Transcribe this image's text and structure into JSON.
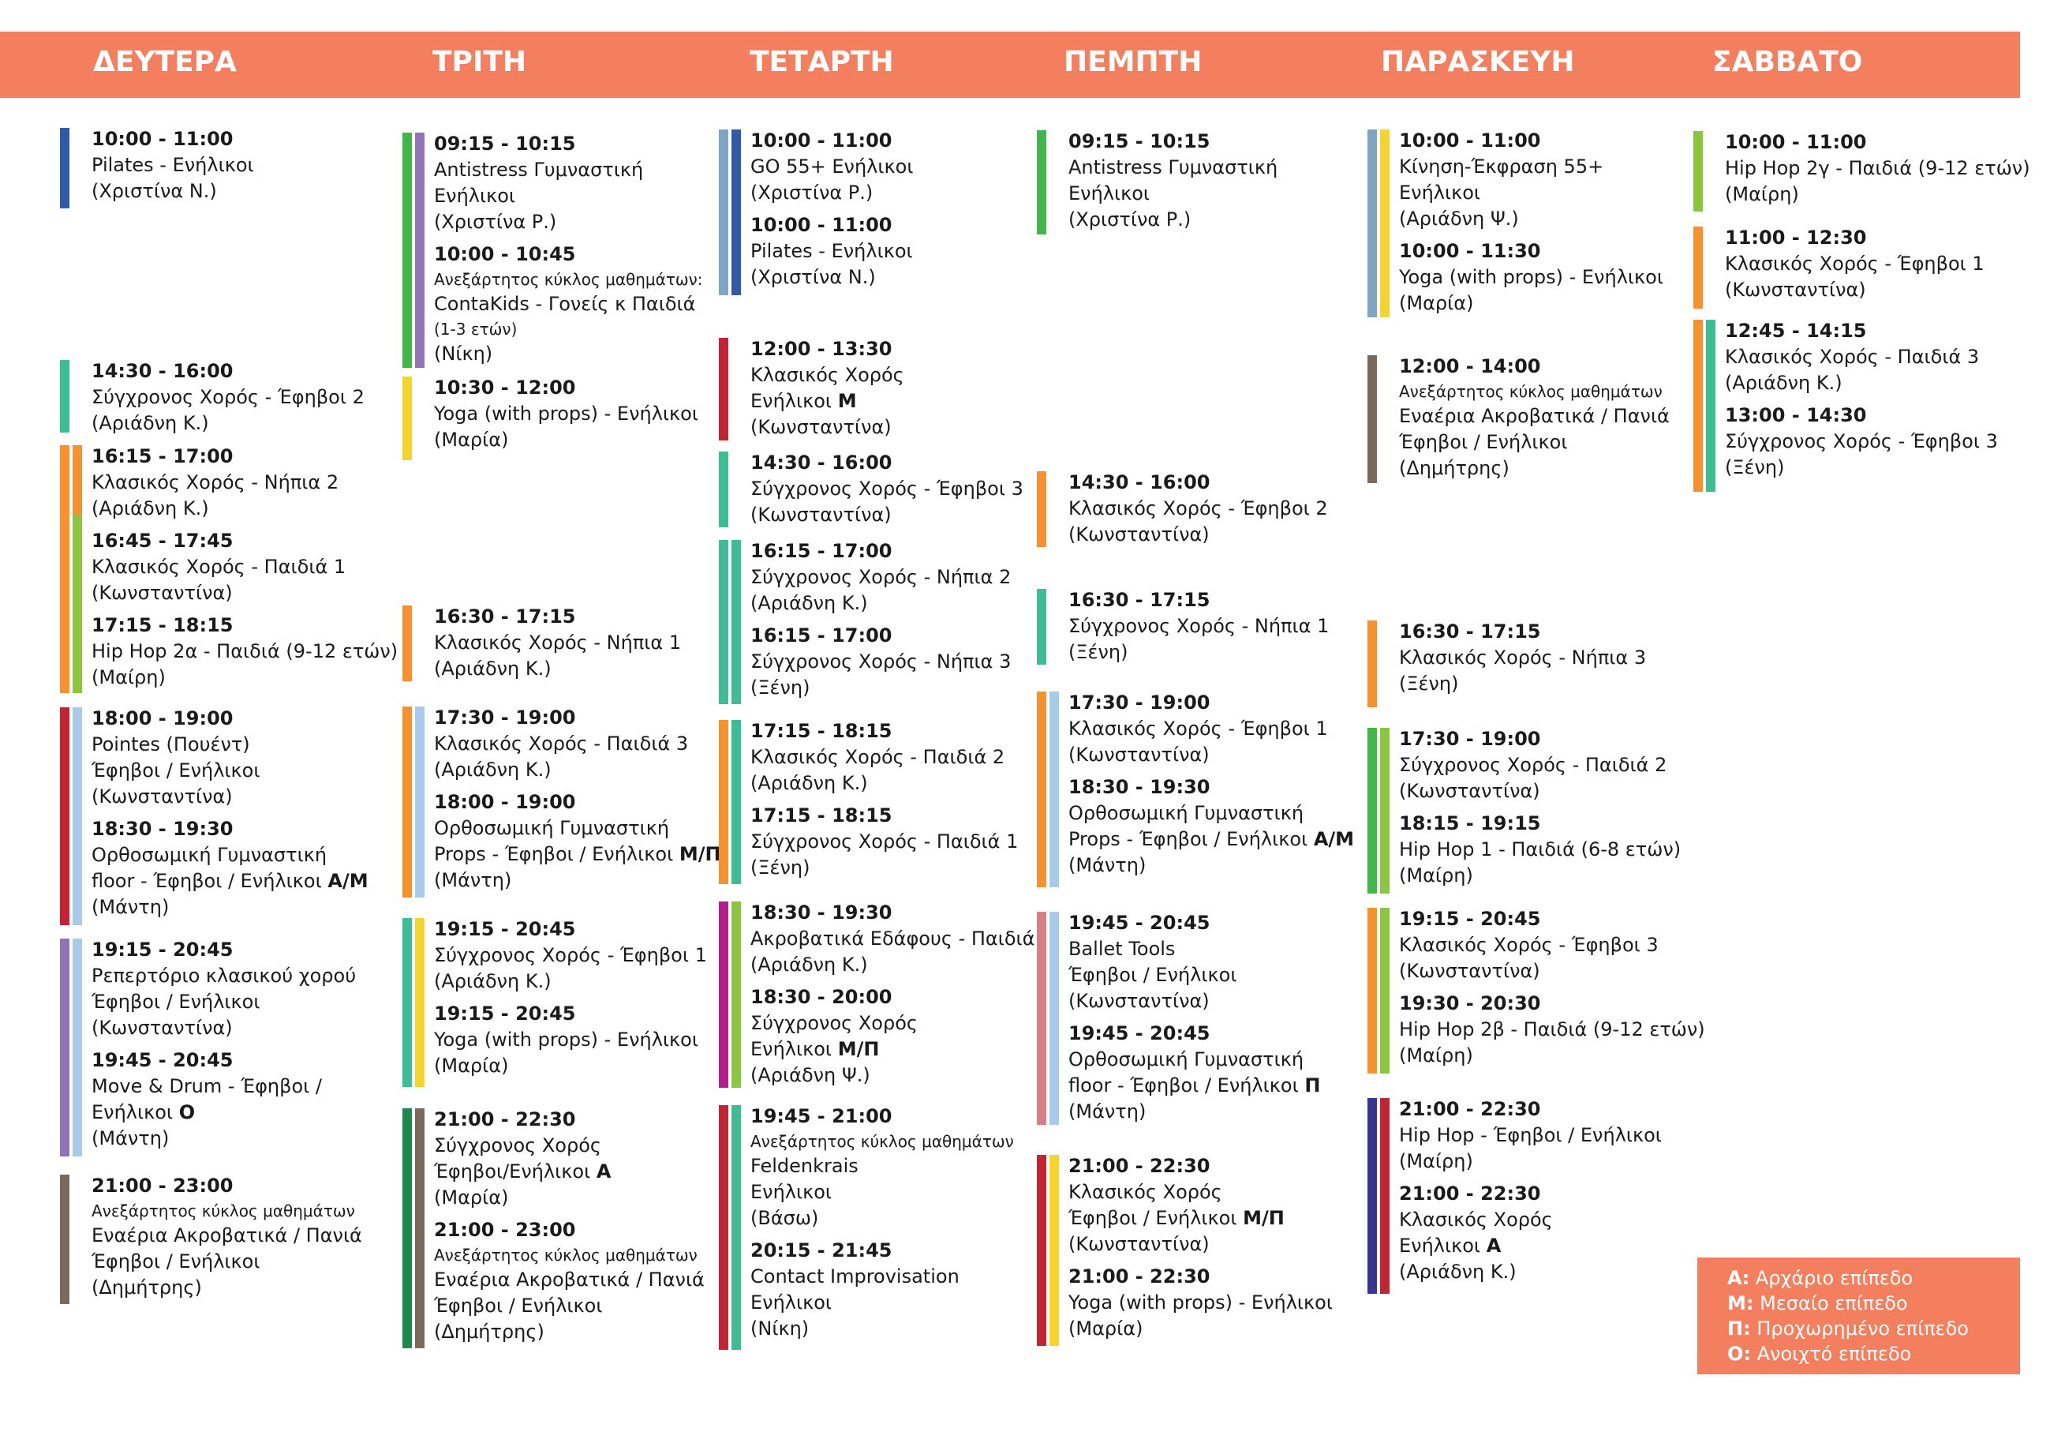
{
  "colors": {
    "header": "#f47f5e",
    "blue": "#2f5aa8",
    "light_blue": "#a7cbe8",
    "steel_blue": "#7ea6c4",
    "teal": "#3dbd93",
    "orange": "#f7902f",
    "green": "#8cc63f",
    "dark_green": "#1b8a4a",
    "red": "#c22432",
    "purple": "#8f74b6",
    "magenta": "#b31e8c",
    "brown": "#7a6a5c",
    "yellow": "#f5d42f",
    "pink": "#d97f86",
    "indigo": "#3a3593",
    "mid_green": "#41b649"
  },
  "days": [
    {
      "name": "ΔΕΥΤΕΡΑ",
      "blocks": [
        {
          "entries": [
            {
              "time": "10:00 - 11:00",
              "lines": [
                "Pilates - Ενήλικοι",
                "(Χριστίνα Ν.)"
              ]
            }
          ]
        },
        {
          "entries": [
            {
              "time": "14:30 - 16:00",
              "lines": [
                "Σύγχρονος Χορός - Έφηβοι 2",
                "(Αριάδνη Κ.)"
              ]
            }
          ]
        },
        {
          "entries": [
            {
              "time": "16:15 - 17:00",
              "lines": [
                "Κλασικός Χορός - Νήπια 2",
                "(Αριάδνη Κ.)"
              ]
            },
            {
              "time": "16:45 - 17:45",
              "lines": [
                "Κλασικός Χορός - Παιδιά 1",
                "(Κωνσταντίνα)"
              ]
            },
            {
              "time": "17:15 - 18:15",
              "lines": [
                "Hip Hop 2α - Παιδιά (9-12 ετών)",
                "(Μαίρη)"
              ]
            }
          ]
        },
        {
          "entries": [
            {
              "time": "18:00 - 19:00",
              "lines": [
                "Pointes (Πουέντ)",
                "Έφηβοι / Ενήλικοι",
                "(Κωνσταντίνα)"
              ]
            },
            {
              "time": "18:30 - 19:30",
              "lines": [
                "Ορθοσωμική Γυμναστική"
              ],
              "level_line": {
                "text": "floor - Έφηβοι / Ενήλικοι ",
                "level": "Α/Μ"
              },
              "after": [
                "(Μάντη)"
              ]
            }
          ]
        },
        {
          "entries": [
            {
              "time": "19:15 - 20:45",
              "lines": [
                "Ρεπερτόριο κλασικού χορού",
                "Έφηβοι / Ενήλικοι",
                "(Κωνσταντίνα)"
              ]
            },
            {
              "time": "19:45 - 20:45",
              "lines": [
                "Move & Drum - Έφηβοι /"
              ],
              "level_line": {
                "text": "Ενήλικοι ",
                "level": "Ο"
              },
              "after": [
                "(Μάντη)"
              ]
            }
          ]
        },
        {
          "entries": [
            {
              "time": "21:00 - 23:00",
              "small": "Ανεξάρτητος κύκλος μαθημάτων",
              "lines": [
                "Εναέρια Ακροβατικά / Πανιά",
                "Έφηβοι / Ενήλικοι",
                "(Δημήτρης)"
              ]
            }
          ]
        }
      ]
    },
    {
      "name": "ΤΡΙΤΗ",
      "blocks": [
        {
          "entries": [
            {
              "time": "09:15 - 10:15",
              "lines": [
                "Antistress Γυμναστική",
                "Ενήλικοι",
                "(Χριστίνα Ρ.)"
              ]
            },
            {
              "time": "10:00 - 10:45",
              "small": "Ανεξάρτητος κύκλος μαθημάτων:",
              "lines": [
                "ContaKids - Γονείς κ Παιδιά"
              ],
              "small2": "(1-3 ετών)",
              "after": [
                "(Νίκη)"
              ]
            }
          ]
        },
        {
          "entries": [
            {
              "time": "10:30 - 12:00",
              "lines": [
                "Yoga (with props) - Ενήλικοι",
                "(Μαρία)"
              ]
            }
          ]
        },
        {
          "entries": [
            {
              "time": "16:30 - 17:15",
              "lines": [
                "Κλασικός Χορός - Νήπια 1",
                "(Αριάδνη Κ.)"
              ]
            }
          ]
        },
        {
          "entries": [
            {
              "time": "17:30 - 19:00",
              "lines": [
                "Κλασικός Χορός - Παιδιά 3",
                "(Αριάδνη Κ.)"
              ]
            },
            {
              "time": "18:00 - 19:00",
              "lines": [
                "Ορθοσωμική Γυμναστική"
              ],
              "level_line": {
                "text": "Props - Έφηβοι / Ενήλικοι ",
                "level": "Μ/Π"
              },
              "after": [
                "(Μάντη)"
              ]
            }
          ]
        },
        {
          "entries": [
            {
              "time": "19:15 - 20:45",
              "lines": [
                "Σύγχρονος Χορός - Έφηβοι 1",
                "(Αριάδνη Κ.)"
              ]
            },
            {
              "time": "19:15 - 20:45",
              "lines": [
                "Yoga (with props) - Ενήλικοι",
                "(Μαρία)"
              ]
            }
          ]
        },
        {
          "entries": [
            {
              "time": "21:00 - 22:30",
              "lines": [
                "Σύγχρονος Χορός"
              ],
              "level_line": {
                "text": "Έφηβοι/Ενήλικοι ",
                "level": "Α"
              },
              "after": [
                "(Μαρία)"
              ]
            },
            {
              "time": "21:00 - 23:00",
              "small": "Ανεξάρτητος κύκλος μαθημάτων",
              "lines": [
                "Εναέρια Ακροβατικά / Πανιά",
                "Έφηβοι / Ενήλικοι",
                "(Δημήτρης)"
              ]
            }
          ]
        }
      ]
    },
    {
      "name": "ΤΕΤΑΡΤΗ",
      "blocks": [
        {
          "entries": [
            {
              "time": "10:00 - 11:00",
              "lines": [
                "GO 55+  Ενήλικοι",
                "(Χριστίνα Ρ.)"
              ]
            },
            {
              "time": "10:00 - 11:00",
              "lines": [
                "Pilates - Ενήλικοι",
                "(Χριστίνα Ν.)"
              ]
            }
          ]
        },
        {
          "entries": [
            {
              "time": "12:00 - 13:30",
              "lines": [
                "Κλασικός Χορός"
              ],
              "level_line": {
                "text": "Ενήλικοι ",
                "level": "Μ"
              },
              "after": [
                "(Κωνσταντίνα)"
              ]
            }
          ]
        },
        {
          "entries": [
            {
              "time": "14:30 - 16:00",
              "lines": [
                "Σύγχρονος Χορός - Έφηβοι 3",
                "(Κωνσταντίνα)"
              ]
            }
          ]
        },
        {
          "entries": [
            {
              "time": "16:15 - 17:00",
              "lines": [
                "Σύγχρονος Χορός - Νήπια 2",
                "(Αριάδνη Κ.)"
              ]
            },
            {
              "time": "16:15 - 17:00",
              "lines": [
                "Σύγχρονος Χορός - Νήπια 3",
                "(Ξένη)"
              ]
            }
          ]
        },
        {
          "entries": [
            {
              "time": "17:15 - 18:15",
              "lines": [
                "Κλασικός Χορός - Παιδιά 2",
                "(Αριάδνη Κ.)"
              ]
            },
            {
              "time": "17:15 - 18:15",
              "lines": [
                "Σύγχρονος Χορός - Παιδιά 1",
                "(Ξένη)"
              ]
            }
          ]
        },
        {
          "entries": [
            {
              "time": "18:30 - 19:30",
              "lines": [
                "Ακροβατικά Εδάφους - Παιδιά",
                "(Αριάδνη Κ.)"
              ]
            },
            {
              "time": "18:30 - 20:00",
              "lines": [
                "Σύγχρονος Χορός"
              ],
              "level_line": {
                "text": "Ενήλικοι ",
                "level": "Μ/Π"
              },
              "after": [
                "(Αριάδνη Ψ.)"
              ]
            }
          ]
        },
        {
          "entries": [
            {
              "time": "19:45 - 21:00",
              "small": "Ανεξάρτητος κύκλος μαθημάτων",
              "lines": [
                "Feldenkrais",
                "Ενήλικοι",
                "(Βάσω)"
              ]
            },
            {
              "time": "20:15 - 21:45",
              "lines": [
                "Contact Improvisation",
                "Ενήλικοι",
                "(Νίκη)"
              ]
            }
          ]
        }
      ]
    },
    {
      "name": "ΠΕΜΠΤΗ",
      "blocks": [
        {
          "entries": [
            {
              "time": "09:15 - 10:15",
              "lines": [
                "Antistress Γυμναστική",
                "Ενήλικοι",
                "(Χριστίνα Ρ.)"
              ]
            }
          ]
        },
        {
          "entries": [
            {
              "time": "14:30 - 16:00",
              "lines": [
                "Κλασικός Χορός - Έφηβοι 2",
                "(Κωνσταντίνα)"
              ]
            }
          ]
        },
        {
          "entries": [
            {
              "time": "16:30 - 17:15",
              "lines": [
                "Σύγχρονος Χορός - Νήπια 1",
                "(Ξένη)"
              ]
            }
          ]
        },
        {
          "entries": [
            {
              "time": "17:30 - 19:00",
              "lines": [
                "Κλασικός Χορός - Έφηβοι 1",
                "(Κωνσταντίνα)"
              ]
            },
            {
              "time": "18:30 - 19:30",
              "lines": [
                "Ορθοσωμική Γυμναστική"
              ],
              "level_line": {
                "text": "Props - Έφηβοι / Ενήλικοι ",
                "level": "Α/Μ"
              },
              "after": [
                "(Μάντη)"
              ]
            }
          ]
        },
        {
          "entries": [
            {
              "time": "19:45 - 20:45",
              "lines": [
                "Ballet Tools",
                "Έφηβοι / Ενήλικοι",
                "(Κωνσταντίνα)"
              ]
            },
            {
              "time": "19:45 - 20:45",
              "lines": [
                "Ορθοσωμική Γυμναστική"
              ],
              "level_line": {
                "text": "floor - Έφηβοι / Ενήλικοι ",
                "level": "Π"
              },
              "after": [
                "(Μάντη)"
              ]
            }
          ]
        },
        {
          "entries": [
            {
              "time": "21:00 - 22:30",
              "lines": [
                "Κλασικός Χορός"
              ],
              "level_line": {
                "text": "Έφηβοι / Ενήλικοι ",
                "level": "Μ/Π"
              },
              "after": [
                "(Κωνσταντίνα)"
              ]
            },
            {
              "time": "21:00 - 22:30",
              "lines": [
                "Yoga (with props) - Ενήλικοι",
                "(Μαρία)"
              ]
            }
          ]
        }
      ]
    },
    {
      "name": "ΠΑΡΑΣΚΕΥΗ",
      "blocks": [
        {
          "entries": [
            {
              "time": "10:00 - 11:00",
              "lines": [
                "Κίνηση-Έκφραση 55+",
                "Ενήλικοι",
                "(Αριάδνη Ψ.)"
              ]
            },
            {
              "time": "10:00 - 11:30",
              "lines": [
                "Yoga (with props) - Ενήλικοι",
                "(Μαρία)"
              ]
            }
          ]
        },
        {
          "entries": [
            {
              "time": "12:00 - 14:00",
              "small": "Ανεξάρτητος κύκλος μαθημάτων",
              "lines": [
                "Εναέρια Ακροβατικά / Πανιά",
                "Έφηβοι / Ενήλικοι",
                "(Δημήτρης)"
              ]
            }
          ]
        },
        {
          "entries": [
            {
              "time": "16:30 - 17:15",
              "lines": [
                "Κλασικός Χορός - Νήπια 3",
                "(Ξένη)"
              ]
            }
          ]
        },
        {
          "entries": [
            {
              "time": "17:30 - 19:00",
              "lines": [
                "Σύγχρονος Χορός - Παιδιά 2",
                "(Κωνσταντίνα)"
              ]
            },
            {
              "time": "18:15 - 19:15",
              "lines": [
                "Hip Hop 1 - Παιδιά (6-8 ετών)",
                "(Μαίρη)"
              ]
            }
          ]
        },
        {
          "entries": [
            {
              "time": "19:15 - 20:45",
              "lines": [
                "Κλασικός Χορός - Έφηβοι 3",
                "(Κωνσταντίνα)"
              ]
            },
            {
              "time": "19:30 - 20:30",
              "lines": [
                "Hip Hop 2β - Παιδιά (9-12 ετών)",
                "(Μαίρη)"
              ]
            }
          ]
        },
        {
          "entries": [
            {
              "time": "21:00 - 22:30",
              "lines": [
                "Hip Hop - Έφηβοι / Ενήλικοι",
                "(Μαίρη)"
              ]
            },
            {
              "time": "21:00 - 22:30",
              "lines": [
                "Κλασικός Χορός"
              ],
              "level_line": {
                "text": "Ενήλικοι ",
                "level": "Α"
              },
              "after": [
                "(Αριάδνη Κ.)"
              ]
            }
          ]
        }
      ]
    },
    {
      "name": "ΣΑΒΒΑΤΟ",
      "blocks": [
        {
          "entries": [
            {
              "time": "10:00 - 11:00",
              "lines": [
                "Hip Hop 2γ - Παιδιά (9-12 ετών)",
                "(Μαίρη)"
              ]
            }
          ]
        },
        {
          "entries": [
            {
              "time": "11:00 - 12:30",
              "lines": [
                "Κλασικός Χορός - Έφηβοι 1",
                "(Κωνσταντίνα)"
              ]
            }
          ]
        },
        {
          "entries": [
            {
              "time": "12:45 - 14:15",
              "lines": [
                "Κλασικός Χορός - Παιδιά 3",
                "(Αριάδνη Κ.)"
              ]
            },
            {
              "time": "13:00 - 14:30",
              "lines": [
                "Σύγχρονος Χορός - Έφηβοι 3",
                "(Ξένη)"
              ]
            }
          ]
        }
      ]
    }
  ],
  "legend": [
    {
      "key": "Α:",
      "text": " Αρχάριο επίπεδο"
    },
    {
      "key": "Μ:",
      "text": " Μεσαίο επίπεδο"
    },
    {
      "key": "Π:",
      "text": " Προχωρημένο επίπεδο"
    },
    {
      "key": "Ο:",
      "text": " Ανοιχτό επίπεδο"
    }
  ]
}
